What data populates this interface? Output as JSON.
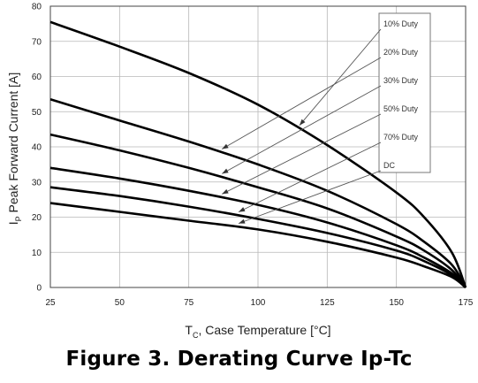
{
  "chart_data": {
    "type": "line",
    "xlabel": "T",
    "xlabel_sub": "C",
    "xlabel_rest": ", Case Temperature [",
    "xlabel_unit": "°C]",
    "ylabel": "I",
    "ylabel_sub": "P",
    "ylabel_rest": " Peak Forward Current [A]",
    "xlim": [
      25,
      175
    ],
    "ylim": [
      0,
      80
    ],
    "xticks": [
      25,
      50,
      75,
      100,
      125,
      150,
      175
    ],
    "yticks": [
      0,
      10,
      20,
      30,
      40,
      50,
      60,
      70,
      80
    ],
    "grid": true,
    "legend_position": "top-right",
    "series": [
      {
        "name": "10% Duty",
        "x": [
          25,
          50,
          75,
          100,
          125,
          150,
          160,
          170,
          175
        ],
        "y": [
          75.5,
          68.5,
          61,
          52,
          40.5,
          27,
          20,
          10,
          0
        ]
      },
      {
        "name": "20% Duty",
        "x": [
          25,
          50,
          75,
          100,
          125,
          150,
          160,
          170,
          175
        ],
        "y": [
          53.5,
          47.5,
          41.5,
          35,
          27.5,
          18,
          13,
          6.5,
          0
        ]
      },
      {
        "name": "30% Duty",
        "x": [
          25,
          50,
          75,
          100,
          125,
          150,
          160,
          170,
          175
        ],
        "y": [
          43.5,
          39,
          34,
          28.5,
          22.5,
          14.5,
          10.5,
          5,
          0
        ]
      },
      {
        "name": "50% Duty",
        "x": [
          25,
          50,
          75,
          100,
          125,
          150,
          160,
          170,
          175
        ],
        "y": [
          34,
          31,
          27.5,
          23.5,
          18.5,
          12,
          8.5,
          4,
          0
        ]
      },
      {
        "name": "70% Duty",
        "x": [
          25,
          50,
          75,
          100,
          125,
          150,
          160,
          170,
          175
        ],
        "y": [
          28.5,
          26,
          23,
          19.5,
          15.5,
          10.5,
          7.5,
          3.5,
          0
        ]
      },
      {
        "name": "DC",
        "x": [
          25,
          50,
          75,
          100,
          125,
          150,
          160,
          170,
          175
        ],
        "y": [
          24,
          21.5,
          19,
          16.5,
          13,
          8.5,
          6,
          3,
          0
        ]
      }
    ],
    "annotation_targets": [
      {
        "series": "10% Duty",
        "x": 115
      },
      {
        "series": "20% Duty",
        "x": 87
      },
      {
        "series": "30% Duty",
        "x": 87
      },
      {
        "series": "50% Duty",
        "x": 87
      },
      {
        "series": "70% Duty",
        "x": 93
      },
      {
        "series": "DC",
        "x": 93
      }
    ]
  },
  "caption": "Figure 3. Derating Curve Ip-Tc"
}
